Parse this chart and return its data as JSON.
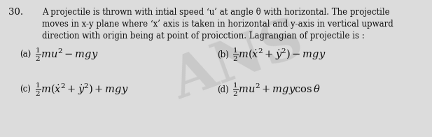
{
  "background_color": "#dcdcdc",
  "question_number": "30.",
  "line1": "A projectile is thrown with intial speed ‘u’ at angle θ with horizontal. The projectile",
  "line2": "moves in x-y plane where ‘x’ axis is taken in horizontal and y-axis in vertical upward",
  "line3": "direction with origin being at point of proicction. Lagrangian of projectile is :",
  "option_a_label": "(a)",
  "option_a_formula": "$\\frac{1}{2}mu^2 - mgy$",
  "option_b_label": "(b)",
  "option_b_formula": "$\\frac{1}{2}m\\left(\\dot{x}^2 + \\dot{y}^2\\right) - mgy$",
  "option_c_label": "(c)",
  "option_c_formula": "$\\frac{1}{2}m\\left(\\dot{x}^2 + \\dot{y}^2\\right) + mgy$",
  "option_d_label": "(d)",
  "option_d_formula": "$\\frac{1}{2}mu^2 + mgy\\cos\\theta$",
  "font_color": "#111111",
  "font_size_body": 8.5,
  "font_size_options": 10.5,
  "font_size_qnum": 9.5,
  "watermark_text": "ANS",
  "watermark_color": "#aaaaaa",
  "watermark_alpha": 0.38,
  "watermark_fontsize": 58,
  "watermark_rotation": 20
}
